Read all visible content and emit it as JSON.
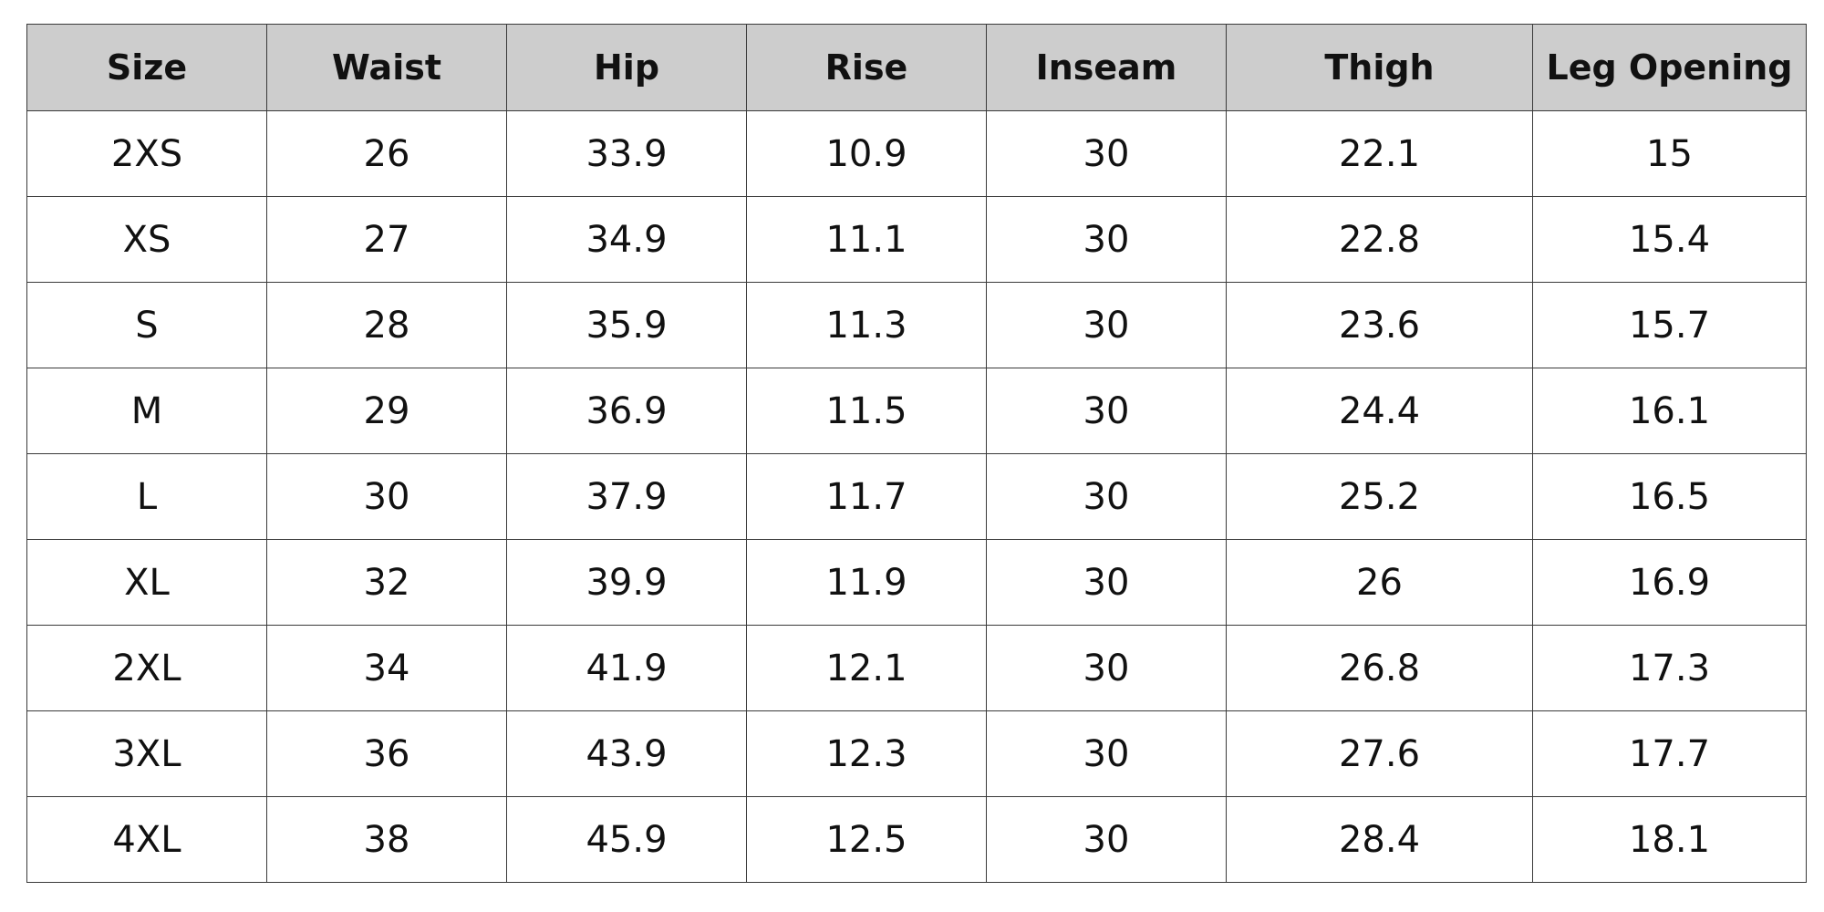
{
  "table": {
    "headers": [
      "Size",
      "Waist",
      "Hip",
      "Rise",
      "Inseam",
      "Thigh",
      "Leg Opening"
    ],
    "rows": [
      [
        "2XS",
        "26",
        "33.9",
        "10.9",
        "30",
        "22.1",
        "15"
      ],
      [
        "XS",
        "27",
        "34.9",
        "11.1",
        "30",
        "22.8",
        "15.4"
      ],
      [
        "S",
        "28",
        "35.9",
        "11.3",
        "30",
        "23.6",
        "15.7"
      ],
      [
        "M",
        "29",
        "36.9",
        "11.5",
        "30",
        "24.4",
        "16.1"
      ],
      [
        "L",
        "30",
        "37.9",
        "11.7",
        "30",
        "25.2",
        "16.5"
      ],
      [
        "XL",
        "32",
        "39.9",
        "11.9",
        "30",
        "26",
        "16.9"
      ],
      [
        "2XL",
        "34",
        "41.9",
        "12.1",
        "30",
        "26.8",
        "17.3"
      ],
      [
        "3XL",
        "36",
        "43.9",
        "12.3",
        "30",
        "27.6",
        "17.7"
      ],
      [
        "4XL",
        "38",
        "45.9",
        "12.5",
        "30",
        "28.4",
        "18.1"
      ]
    ]
  },
  "colors": {
    "header_background": "#cdcdcd",
    "border": "#3a3a3a",
    "text": "#111111"
  }
}
